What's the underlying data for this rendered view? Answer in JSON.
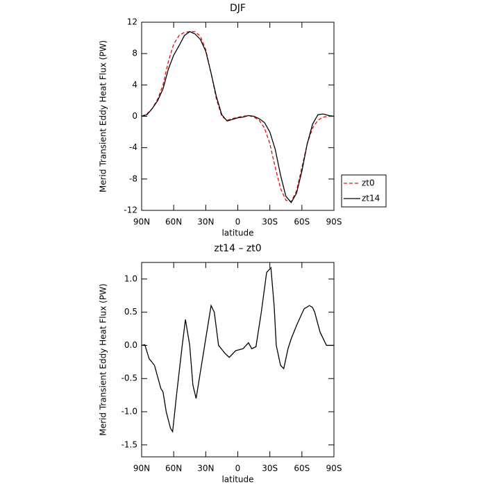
{
  "chart_data": [
    {
      "type": "line",
      "title": "DJF",
      "xlabel": "latitude",
      "ylabel": "Merid Transient Eddy Heat Flux (PW)",
      "x": [
        90,
        85,
        80,
        75,
        70,
        65,
        60,
        55,
        50,
        45,
        40,
        35,
        30,
        25,
        20,
        15,
        10,
        5,
        0,
        -5,
        -10,
        -15,
        -20,
        -25,
        -30,
        -35,
        -40,
        -45,
        -50,
        -55,
        -60,
        -65,
        -70,
        -75,
        -80,
        -85,
        -90
      ],
      "series": [
        {
          "name": "zt0",
          "color": "#ff0000",
          "dash": true,
          "values": [
            0,
            0.3,
            1,
            2.2,
            4,
            7,
            9.2,
            10.3,
            10.7,
            10.8,
            10.8,
            10.2,
            8.5,
            5.5,
            2.2,
            0,
            -0.5,
            -0.3,
            -0.1,
            0,
            0.1,
            -0.1,
            -0.5,
            -1.5,
            -3.5,
            -6.5,
            -9.2,
            -10.7,
            -10.9,
            -9.5,
            -6.5,
            -3.5,
            -1.5,
            -0.5,
            -0.1,
            0,
            0
          ]
        },
        {
          "name": "zt14",
          "color": "#000000",
          "dash": false,
          "values": [
            0,
            0.2,
            1,
            2,
            3.5,
            6,
            7.8,
            9,
            10.3,
            10.8,
            10.5,
            9.8,
            8.3,
            5.5,
            2.5,
            0.2,
            -0.6,
            -0.4,
            -0.2,
            -0.1,
            0.1,
            0,
            -0.3,
            -0.8,
            -2,
            -4.2,
            -7.5,
            -10.2,
            -11,
            -9.8,
            -7,
            -3.5,
            -1,
            0.2,
            0.3,
            0.1,
            0
          ]
        }
      ],
      "xlim": [
        90,
        -90
      ],
      "xticks": [
        {
          "value": 90,
          "label": "90N"
        },
        {
          "value": 60,
          "label": "60N"
        },
        {
          "value": 30,
          "label": "30N"
        },
        0,
        {
          "value": -30,
          "label": "30S"
        },
        {
          "value": -60,
          "label": "60S"
        },
        {
          "value": -90,
          "label": "90S"
        }
      ],
      "ylim": [
        -12,
        12
      ],
      "yticks": [
        -12,
        -8,
        -4,
        0,
        4,
        8,
        12
      ],
      "legend": "right"
    },
    {
      "type": "line",
      "title": "zt14 – zt0",
      "xlabel": "latitude",
      "ylabel": "Merid Transient Eddy Heat Flux (PW)",
      "x": [
        90,
        87,
        83,
        78,
        72,
        70,
        67,
        63,
        61,
        57,
        52,
        49,
        45,
        42,
        39,
        35,
        30,
        25,
        22,
        18,
        12,
        8,
        2,
        -5,
        -10,
        -13,
        -17,
        -22,
        -27,
        -31,
        -34,
        -36,
        -40,
        -43,
        -47,
        -50,
        -55,
        -62,
        -67,
        -70,
        -72,
        -77,
        -83,
        -90
      ],
      "series": [
        {
          "name": "zt14 – zt0",
          "color": "#000000",
          "dash": false,
          "values": [
            0,
            0.01,
            -0.2,
            -0.3,
            -0.65,
            -0.7,
            -1.0,
            -1.25,
            -1.3,
            -0.7,
            0,
            0.39,
            0,
            -0.6,
            -0.8,
            -0.4,
            0.1,
            0.6,
            0.5,
            0,
            -0.12,
            -0.18,
            -0.08,
            -0.05,
            0.04,
            -0.05,
            -0.02,
            0.5,
            1.1,
            1.17,
            0.6,
            0,
            -0.3,
            -0.35,
            -0.05,
            0.1,
            0.3,
            0.55,
            0.6,
            0.57,
            0.5,
            0.2,
            0,
            0
          ]
        }
      ],
      "xlim": [
        90,
        -90
      ],
      "xticks": [
        {
          "value": 90,
          "label": "90N"
        },
        {
          "value": 60,
          "label": "60N"
        },
        {
          "value": 30,
          "label": "30N"
        },
        0,
        {
          "value": -30,
          "label": "30S"
        },
        {
          "value": -60,
          "label": "60S"
        },
        {
          "value": -90,
          "label": "90S"
        }
      ],
      "ylim": [
        -1.68,
        1.25
      ],
      "yticks": [
        -1.5,
        {
          "value": -1,
          "label": "-1.0"
        },
        -0.5,
        {
          "value": 0,
          "label": "0.0"
        },
        0.5,
        {
          "value": 1,
          "label": "1.0"
        }
      ]
    }
  ]
}
